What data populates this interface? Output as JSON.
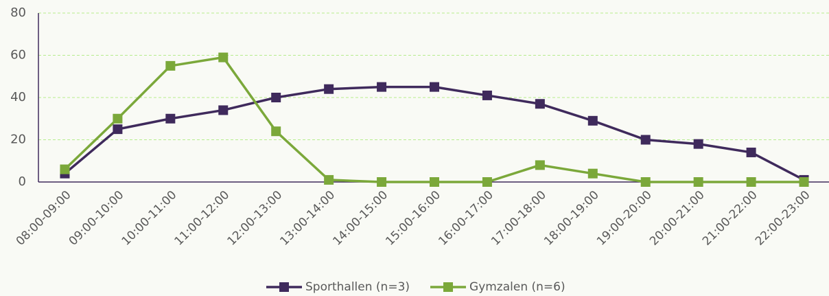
{
  "chart_data": {
    "type": "line",
    "categories": [
      "08:00-09:00",
      "09:00-10:00",
      "10:00-11:00",
      "11:00-12:00",
      "12:00-13:00",
      "13:00-14:00",
      "14:00-15:00",
      "15:00-16:00",
      "16:00-17:00",
      "17:00-18:00",
      "18:00-19:00",
      "19:00-20:00",
      "20:00-21:00",
      "21:00-22:00",
      "22:00-23:00"
    ],
    "series": [
      {
        "name": "Sporthallen (n=3)",
        "color": "#3f2a5c",
        "values": [
          4,
          25,
          30,
          34,
          40,
          44,
          45,
          45,
          41,
          37,
          29,
          20,
          18,
          14,
          1
        ]
      },
      {
        "name": "Gymzalen (n=6)",
        "color": "#7ba83a",
        "values": [
          6,
          30,
          55,
          59,
          24,
          1,
          0,
          0,
          0,
          8,
          4,
          0,
          0,
          0,
          0
        ]
      }
    ],
    "ylim": [
      0,
      80
    ],
    "yticks": [
      0,
      20,
      40,
      60,
      80
    ],
    "grid": true,
    "legend": "bottom"
  }
}
